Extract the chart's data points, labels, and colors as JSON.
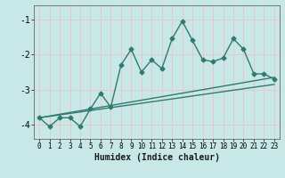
{
  "title": "",
  "xlabel": "Humidex (Indice chaleur)",
  "ylabel": "",
  "bg_color": "#c8e8e8",
  "grid_color": "#e8c8c8",
  "line_color": "#2e7b6e",
  "xlim": [
    -0.5,
    23.5
  ],
  "ylim": [
    -4.4,
    -0.6
  ],
  "yticks": [
    -4,
    -3,
    -2,
    -1
  ],
  "xtick_labels": [
    "0",
    "1",
    "2",
    "3",
    "4",
    "5",
    "6",
    "7",
    "8",
    "9",
    "10",
    "11",
    "12",
    "13",
    "14",
    "15",
    "16",
    "17",
    "18",
    "19",
    "20",
    "21",
    "22",
    "23"
  ],
  "xticks": [
    0,
    1,
    2,
    3,
    4,
    5,
    6,
    7,
    8,
    9,
    10,
    11,
    12,
    13,
    14,
    15,
    16,
    17,
    18,
    19,
    20,
    21,
    22,
    23
  ],
  "series": [
    {
      "x": [
        0,
        1,
        2,
        3,
        4,
        5,
        6,
        7,
        8,
        9,
        10,
        11,
        12,
        13,
        14,
        15,
        16,
        17,
        18,
        19,
        20,
        21,
        22,
        23
      ],
      "y": [
        -3.8,
        -4.05,
        -3.8,
        -3.8,
        -4.05,
        -3.55,
        -3.1,
        -3.5,
        -2.3,
        -1.85,
        -2.5,
        -2.15,
        -2.4,
        -1.55,
        -1.05,
        -1.6,
        -2.15,
        -2.2,
        -2.1,
        -1.55,
        -1.85,
        -2.55,
        -2.55,
        -2.7
      ],
      "marker": "D",
      "markersize": 2.5,
      "linewidth": 1.0
    },
    {
      "x": [
        0,
        23
      ],
      "y": [
        -3.8,
        -2.65
      ],
      "marker": null,
      "markersize": 0,
      "linewidth": 1.0
    },
    {
      "x": [
        0,
        23
      ],
      "y": [
        -3.8,
        -2.85
      ],
      "marker": null,
      "markersize": 0,
      "linewidth": 1.0
    }
  ]
}
